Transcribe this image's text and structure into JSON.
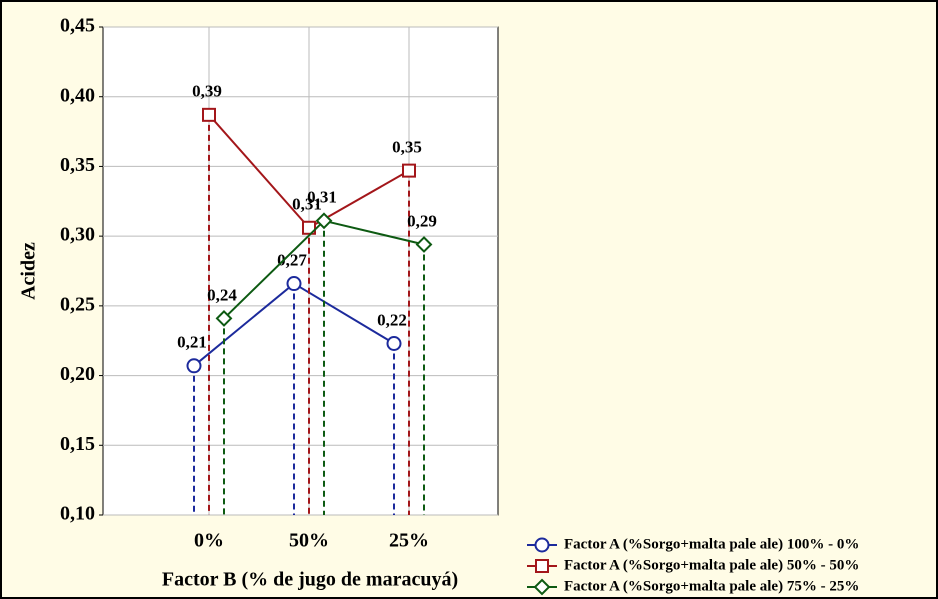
{
  "chart_data": {
    "type": "line",
    "x_label": "Factor B (% de jugo de maracuyá)",
    "y_label": "Acidez",
    "categories": [
      "0%",
      "50%",
      "25%"
    ],
    "ylim": [
      0.1,
      0.45
    ],
    "yticks": [
      {
        "value": 0.1,
        "label": "0,10"
      },
      {
        "value": 0.15,
        "label": "0,15"
      },
      {
        "value": 0.2,
        "label": "0,20"
      },
      {
        "value": 0.25,
        "label": "0,25"
      },
      {
        "value": 0.3,
        "label": "0,30"
      },
      {
        "value": 0.35,
        "label": "0,35"
      },
      {
        "value": 0.4,
        "label": "0,40"
      },
      {
        "value": 0.45,
        "label": "0,45"
      }
    ],
    "grid": true,
    "series": [
      {
        "name": "Factor A (%Sorgo+malta pale ale) 100% - 0%",
        "color": "#1c2a9c",
        "marker": "circle",
        "values": [
          0.207,
          0.266,
          0.223
        ],
        "value_labels": [
          "0,21",
          "0,27",
          "0,22"
        ]
      },
      {
        "name": "Factor A (%Sorgo+malta pale ale) 50% - 50%",
        "color": "#a3161a",
        "marker": "square",
        "values": [
          0.387,
          0.306,
          0.347
        ],
        "value_labels": [
          "0,39",
          "0,31",
          "0,35"
        ]
      },
      {
        "name": "Factor A (%Sorgo+malta pale ale) 75% - 25%",
        "color": "#0d5a12",
        "marker": "diamond",
        "values": [
          0.241,
          0.311,
          0.294
        ],
        "value_labels": [
          "0,24",
          "0,31",
          "0,29"
        ]
      }
    ]
  }
}
